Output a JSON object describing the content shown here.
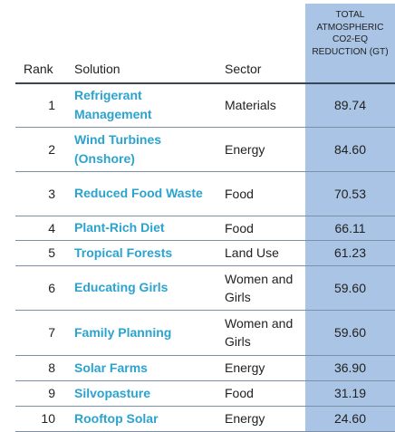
{
  "table": {
    "headers": {
      "rank": "Rank",
      "solution": "Solution",
      "sector": "Sector",
      "reduction": "TOTAL ATMOSPHERIC CO2-EQ REDUCTION (GT)"
    },
    "rows": [
      {
        "rank": "1",
        "solution": "Refrigerant Management",
        "sector": "Materials",
        "value": "89.74"
      },
      {
        "rank": "2",
        "solution": "Wind Turbines (Onshore)",
        "sector": "Energy",
        "value": "84.60"
      },
      {
        "rank": "3",
        "solution": "Reduced Food Waste",
        "sector": "Food",
        "value": "70.53"
      },
      {
        "rank": "4",
        "solution": "Plant-Rich Diet",
        "sector": "Food",
        "value": "66.11"
      },
      {
        "rank": "5",
        "solution": "Tropical Forests",
        "sector": "Land Use",
        "value": "61.23"
      },
      {
        "rank": "6",
        "solution": "Educating Girls",
        "sector": "Women and Girls",
        "value": "59.60"
      },
      {
        "rank": "7",
        "solution": "Family Planning",
        "sector": "Women and Girls",
        "value": "59.60"
      },
      {
        "rank": "8",
        "solution": "Solar Farms",
        "sector": "Energy",
        "value": "36.90"
      },
      {
        "rank": "9",
        "solution": "Silvopasture",
        "sector": "Food",
        "value": "31.19"
      },
      {
        "rank": "10",
        "solution": "Rooftop Solar",
        "sector": "Energy",
        "value": "24.60"
      }
    ]
  },
  "colors": {
    "solution_text": "#2ba3cf",
    "value_column_background": "#a9c4e4"
  }
}
